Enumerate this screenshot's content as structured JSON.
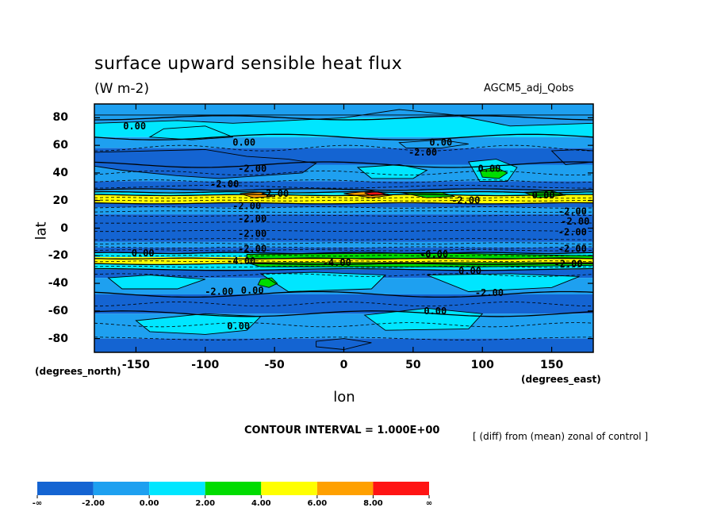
{
  "chart_data": {
    "type": "contour",
    "title": "surface upward sensible heat flux",
    "units_label": "(W m-2)",
    "model_label": "AGCM5_adj_Qobs",
    "xlabel": "lon",
    "ylabel": "lat",
    "x_unit_label": "(degrees_east)",
    "y_unit_label": "(degrees_north)",
    "xlim": [
      -180,
      180
    ],
    "ylim": [
      -90,
      90
    ],
    "x_ticks": [
      -150,
      -100,
      -50,
      0,
      50,
      100,
      150
    ],
    "x_tick_labels": [
      "-150",
      "-100",
      "-50",
      "0",
      "50",
      "100",
      "150"
    ],
    "y_ticks": [
      80,
      60,
      40,
      20,
      0,
      -20,
      -40,
      -60,
      -80
    ],
    "y_tick_labels": [
      "80",
      "60",
      "40",
      "20",
      "0",
      "-20",
      "-40",
      "-60",
      "-80"
    ],
    "contour_interval_label": "CONTOUR INTERVAL = 1.000E+00",
    "note": "[ (diff) from (mean) zonal of control ]",
    "contour_labels": [
      {
        "text": "0.00",
        "lon": -151,
        "lat": 74
      },
      {
        "text": "0.00",
        "lon": -72,
        "lat": 62
      },
      {
        "text": "0.00",
        "lon": 70,
        "lat": 62
      },
      {
        "text": "-2.00",
        "lon": 57,
        "lat": 55
      },
      {
        "text": "-2.00",
        "lon": -66,
        "lat": 43
      },
      {
        "text": "0.00",
        "lon": 105,
        "lat": 43
      },
      {
        "text": "-2.00",
        "lon": -86,
        "lat": 32
      },
      {
        "text": "-2.00",
        "lon": -50,
        "lat": 25
      },
      {
        "text": "-2.00",
        "lon": 88,
        "lat": 20
      },
      {
        "text": "0.00",
        "lon": 144,
        "lat": 24
      },
      {
        "text": "-2.00",
        "lon": -70,
        "lat": 16
      },
      {
        "text": "-2.00",
        "lon": -66,
        "lat": 7
      },
      {
        "text": "-2.00",
        "lon": 165,
        "lat": 12
      },
      {
        "text": "-2.00",
        "lon": 167,
        "lat": 5
      },
      {
        "text": "-2.00",
        "lon": -66,
        "lat": -4
      },
      {
        "text": "-2.00",
        "lon": 165,
        "lat": -3
      },
      {
        "text": "-2.00",
        "lon": -66,
        "lat": -15
      },
      {
        "text": "-2.00",
        "lon": 165,
        "lat": -15
      },
      {
        "text": "-2.00",
        "lon": 162,
        "lat": -26
      },
      {
        "text": "0.00",
        "lon": -145,
        "lat": -18
      },
      {
        "text": "-4.00",
        "lon": -74,
        "lat": -24
      },
      {
        "text": "-4.00",
        "lon": -5,
        "lat": -25
      },
      {
        "text": "-0.00",
        "lon": 65,
        "lat": -19
      },
      {
        "text": "0.00",
        "lon": 91,
        "lat": -31
      },
      {
        "text": "0.00",
        "lon": -66,
        "lat": -45
      },
      {
        "text": "-2.00",
        "lon": -90,
        "lat": -46
      },
      {
        "text": "-2.00",
        "lon": 105,
        "lat": -47
      },
      {
        "text": "0.00",
        "lon": 66,
        "lat": -60
      },
      {
        "text": "0.00",
        "lon": -76,
        "lat": -71
      }
    ],
    "colorbar": {
      "colors": [
        "#1464d2",
        "#1ea0f0",
        "#00e6ff",
        "#00dc00",
        "#ffff00",
        "#ffa000",
        "#ff1414"
      ],
      "labels": [
        "-∞",
        "-2.00",
        "0.00",
        "2.00",
        "4.00",
        "6.00",
        "8.00",
        "∞"
      ]
    },
    "shading_colors": {
      "lt_m2": "#1464d2",
      "m2_0": "#1ea0f0",
      "0_2": "#00e6ff",
      "2_4": "#00dc00",
      "4_6": "#ffff00",
      "6_8": "#ffa000",
      "gt_8": "#ff1414"
    }
  }
}
